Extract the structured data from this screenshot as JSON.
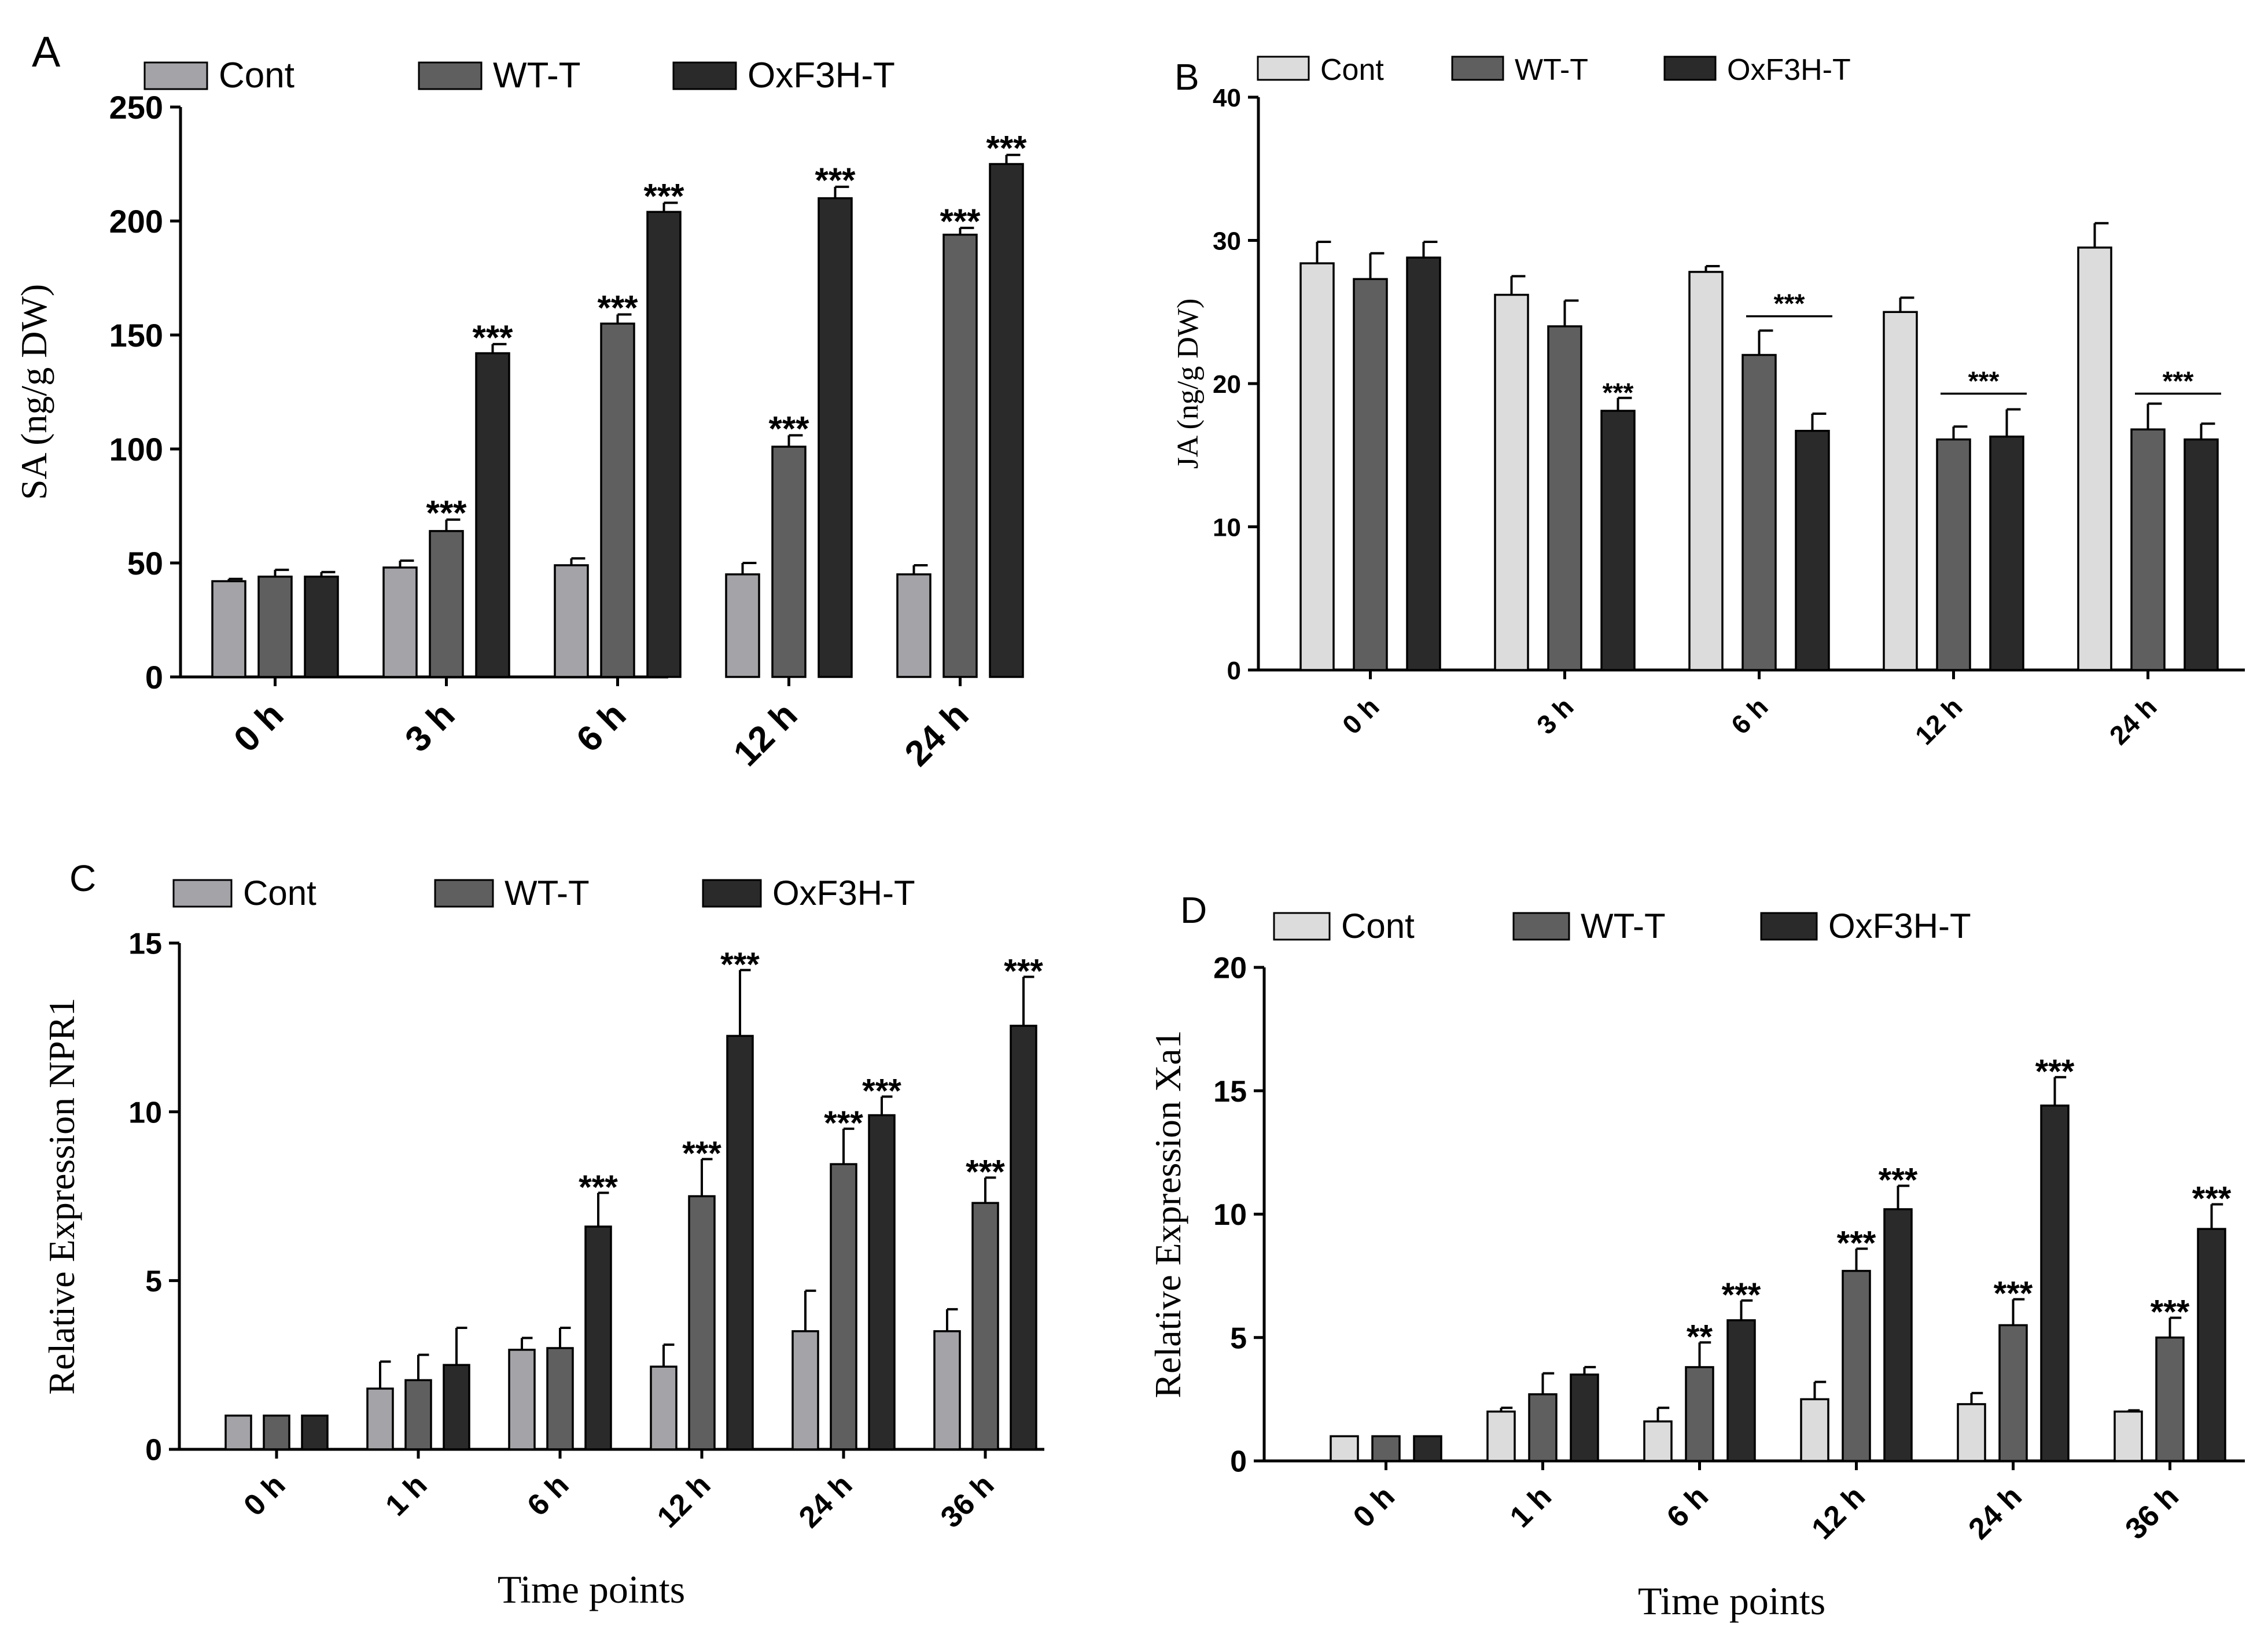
{
  "colors": {
    "cont_dark": "#a3a3a8",
    "cont_light": "#dcdcdc",
    "wt": "#5f5f5f",
    "ox": "#2a2a2a",
    "axis": "#000000"
  },
  "chart_data": [
    {
      "panel": "A",
      "type": "bar",
      "title": "",
      "legend": [
        "Cont",
        "WT-T",
        "OxF3H-T"
      ],
      "legend_position": "top",
      "categories": [
        "0 h",
        "3 h",
        "6 h",
        "12 h",
        "24 h"
      ],
      "ylabel": "SA (ng/g DW)",
      "xlabel": "",
      "ylim": [
        0,
        250
      ],
      "yticks": [
        "0",
        "50",
        "100",
        "150",
        "200",
        "250"
      ],
      "series": [
        {
          "name": "Cont",
          "values": [
            42,
            48,
            49,
            45,
            45
          ],
          "errors": [
            1,
            3,
            3,
            5,
            4
          ]
        },
        {
          "name": "WT-T",
          "values": [
            44,
            64,
            155,
            101,
            194
          ],
          "errors": [
            3,
            5,
            4,
            5,
            3
          ]
        },
        {
          "name": "OxF3H-T",
          "values": [
            44,
            142,
            204,
            210,
            225
          ],
          "errors": [
            2,
            4,
            4,
            5,
            4
          ]
        }
      ],
      "annotations": [
        {
          "series": 1,
          "category": 1,
          "label": "***"
        },
        {
          "series": 2,
          "category": 1,
          "label": "***"
        },
        {
          "series": 1,
          "category": 2,
          "label": "***"
        },
        {
          "series": 2,
          "category": 2,
          "label": "***"
        },
        {
          "series": 1,
          "category": 3,
          "label": "***"
        },
        {
          "series": 2,
          "category": 3,
          "label": "***"
        },
        {
          "series": 1,
          "category": 4,
          "label": "***"
        },
        {
          "series": 2,
          "category": 4,
          "label": "***"
        }
      ],
      "brackets": []
    },
    {
      "panel": "B",
      "type": "bar",
      "title": "",
      "legend": [
        "Cont",
        "WT-T",
        "OxF3H-T"
      ],
      "legend_position": "top",
      "categories": [
        "0 h",
        "3 h",
        "6 h",
        "12 h",
        "24 h"
      ],
      "ylabel": "JA (ng/g DW)",
      "xlabel": "",
      "ylim": [
        0,
        40
      ],
      "yticks": [
        "0",
        "10",
        "20",
        "30",
        "40"
      ],
      "series": [
        {
          "name": "Cont",
          "values": [
            28.4,
            26.2,
            27.8,
            25.0,
            29.5
          ],
          "errors": [
            1.5,
            1.3,
            0.4,
            1.0,
            1.7
          ]
        },
        {
          "name": "WT-T",
          "values": [
            27.3,
            24.0,
            22.0,
            16.1,
            16.8
          ],
          "errors": [
            1.8,
            1.8,
            1.7,
            0.9,
            1.8
          ]
        },
        {
          "name": "OxF3H-T",
          "values": [
            28.8,
            18.1,
            16.7,
            16.3,
            16.1
          ],
          "errors": [
            1.1,
            0.9,
            1.2,
            1.9,
            1.1
          ]
        }
      ],
      "annotations": [
        {
          "series": 2,
          "category": 1,
          "label": "***"
        }
      ],
      "brackets": [
        {
          "category": 2,
          "from_series": 1,
          "to_series": 2,
          "y": 24.7,
          "label": "***"
        },
        {
          "category": 3,
          "from_series": 1,
          "to_series": 2,
          "y": 19.3,
          "label": "***"
        },
        {
          "category": 4,
          "from_series": 1,
          "to_series": 2,
          "y": 19.3,
          "label": "***"
        }
      ]
    },
    {
      "panel": "C",
      "type": "bar",
      "title": "",
      "legend": [
        "Cont",
        "WT-T",
        "OxF3H-T"
      ],
      "legend_position": "top",
      "categories": [
        "0 h",
        "1 h",
        "6 h",
        "12 h",
        "24 h",
        "36 h"
      ],
      "ylabel": "Relative Expression NPR1",
      "xlabel": "Time points",
      "ylim": [
        0,
        15
      ],
      "yticks": [
        "0",
        "5",
        "10",
        "15"
      ],
      "series": [
        {
          "name": "Cont",
          "values": [
            1.0,
            1.8,
            2.95,
            2.45,
            3.5,
            3.5
          ],
          "errors": [
            0,
            0.8,
            0.35,
            0.65,
            1.2,
            0.65
          ]
        },
        {
          "name": "WT-T",
          "values": [
            1.0,
            2.05,
            3.0,
            7.5,
            8.45,
            7.3
          ],
          "errors": [
            0,
            0.75,
            0.6,
            1.1,
            1.05,
            0.75
          ]
        },
        {
          "name": "OxF3H-T",
          "values": [
            1.0,
            2.5,
            6.6,
            12.25,
            9.9,
            12.55
          ],
          "errors": [
            0,
            1.1,
            1.0,
            1.95,
            0.55,
            1.45
          ]
        }
      ],
      "annotations": [
        {
          "series": 2,
          "category": 2,
          "label": "***"
        },
        {
          "series": 1,
          "category": 3,
          "label": "***"
        },
        {
          "series": 2,
          "category": 3,
          "label": "***"
        },
        {
          "series": 1,
          "category": 4,
          "label": "***"
        },
        {
          "series": 2,
          "category": 4,
          "label": "***"
        },
        {
          "series": 1,
          "category": 5,
          "label": "***"
        },
        {
          "series": 2,
          "category": 5,
          "label": "***"
        }
      ],
      "brackets": []
    },
    {
      "panel": "D",
      "type": "bar",
      "title": "",
      "legend": [
        "Cont",
        "WT-T",
        "OxF3H-T"
      ],
      "legend_position": "top",
      "categories": [
        "0 h",
        "1 h",
        "6 h",
        "12 h",
        "24 h",
        "36 h"
      ],
      "ylabel": "Relative Expression Xa1",
      "xlabel": "Time points",
      "ylim": [
        0,
        20
      ],
      "yticks": [
        "0",
        "5",
        "10",
        "15",
        "20"
      ],
      "series": [
        {
          "name": "Cont",
          "values": [
            1.0,
            2.0,
            1.6,
            2.5,
            2.3,
            2.0
          ],
          "errors": [
            0,
            0.15,
            0.55,
            0.7,
            0.45,
            0.05
          ]
        },
        {
          "name": "WT-T",
          "values": [
            1.0,
            2.7,
            3.8,
            7.7,
            5.5,
            5.0
          ],
          "errors": [
            0,
            0.85,
            1.0,
            0.9,
            1.05,
            0.8
          ]
        },
        {
          "name": "OxF3H-T",
          "values": [
            1.0,
            3.5,
            5.7,
            10.2,
            14.4,
            9.4
          ],
          "errors": [
            0,
            0.3,
            0.8,
            0.95,
            1.15,
            1.0
          ]
        }
      ],
      "annotations": [
        {
          "series": 1,
          "category": 2,
          "label": "**"
        },
        {
          "series": 2,
          "category": 2,
          "label": "***"
        },
        {
          "series": 1,
          "category": 3,
          "label": "***"
        },
        {
          "series": 2,
          "category": 3,
          "label": "***"
        },
        {
          "series": 1,
          "category": 4,
          "label": "***"
        },
        {
          "series": 2,
          "category": 4,
          "label": "***"
        },
        {
          "series": 1,
          "category": 5,
          "label": "***"
        },
        {
          "series": 2,
          "category": 5,
          "label": "***"
        }
      ],
      "brackets": []
    }
  ]
}
